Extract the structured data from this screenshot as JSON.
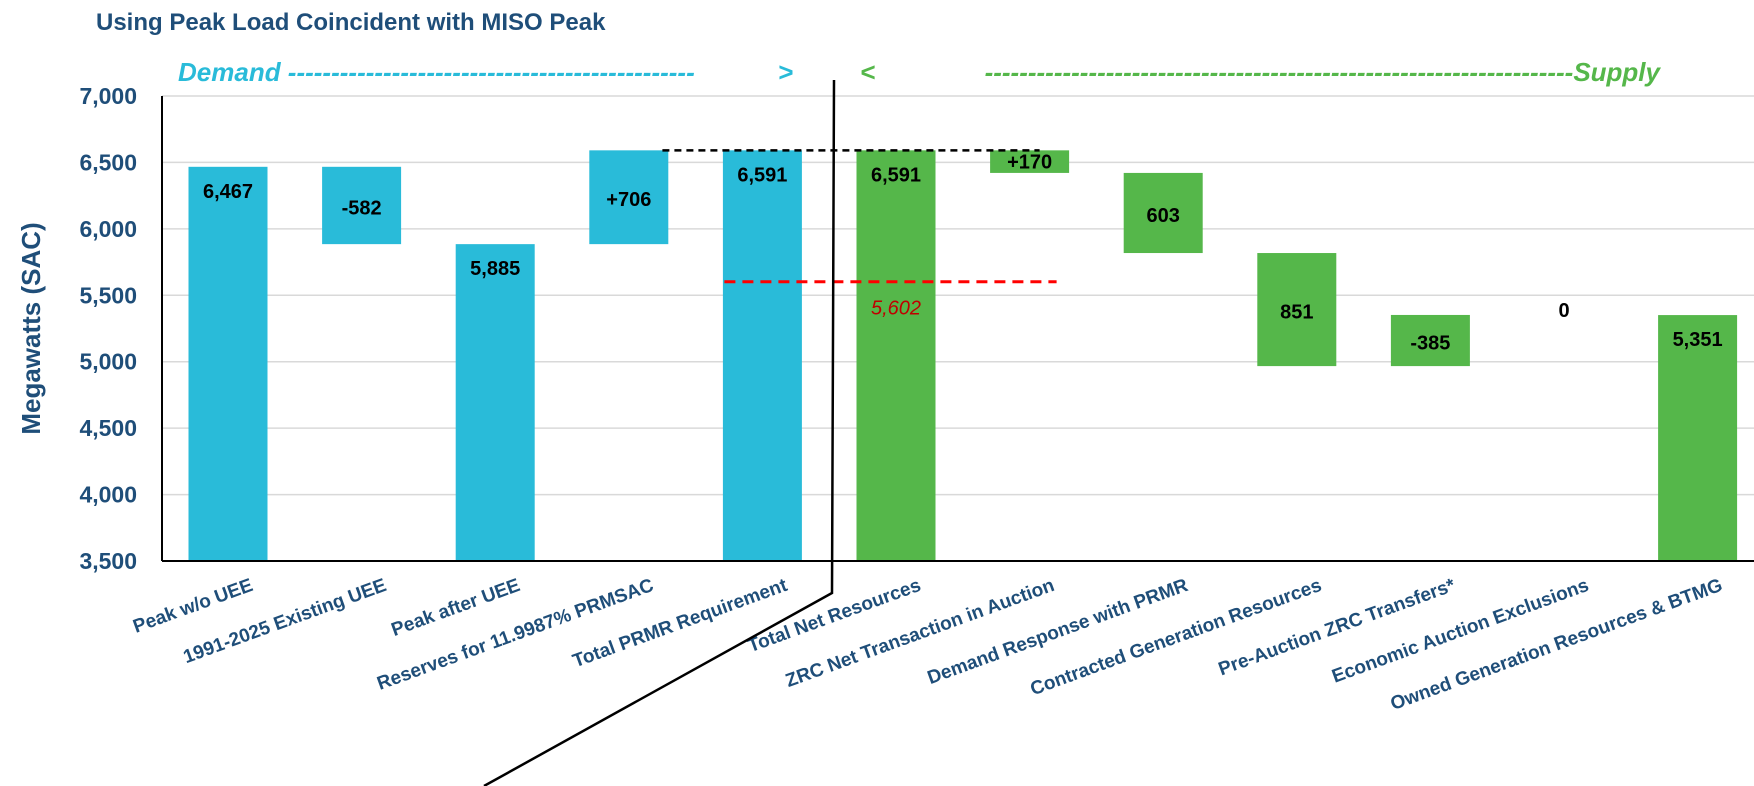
{
  "chart_data": {
    "type": "bar",
    "subtype": "waterfall",
    "title": "Using Peak Load Coincident with MISO Peak",
    "xlabel": "",
    "ylabel": "Megawatts (SAC)",
    "ylim": [
      3500,
      7000
    ],
    "yticks": [
      "3,500",
      "4,000",
      "4,500",
      "5,000",
      "5,500",
      "6,000",
      "6,500",
      "7,000"
    ],
    "grid": true,
    "colors": {
      "demand": "#29BBD9",
      "supply": "#55B74A",
      "axis_text": "#1f4e79",
      "reference_line": "#ff0000",
      "reference_text": "#c00000",
      "top_line": "#000000"
    },
    "sections": {
      "demand": "Demand",
      "supply": "Supply"
    },
    "bars": [
      {
        "category": "Peak w/o UEE",
        "low": 3500,
        "high": 6467,
        "label": "6,467",
        "group": "demand"
      },
      {
        "category": "1991-2025 Existing UEE",
        "low": 5885,
        "high": 6467,
        "label": "-582",
        "group": "demand"
      },
      {
        "category": "Peak after UEE",
        "low": 3500,
        "high": 5885,
        "label": "5,885",
        "group": "demand"
      },
      {
        "category": "Reserves for 11.9987% PRMSAC",
        "low": 5885,
        "high": 6591,
        "label": "+706",
        "group": "demand"
      },
      {
        "category": "Total PRMR Requirement",
        "low": 3500,
        "high": 6591,
        "label": "6,591",
        "group": "demand"
      },
      {
        "category": "Total Net Resources",
        "low": 3500,
        "high": 6591,
        "label": "6,591",
        "group": "supply"
      },
      {
        "category": "ZRC Net Transaction in Auction",
        "low": 6421,
        "high": 6591,
        "label": "+170",
        "group": "supply"
      },
      {
        "category": "Demand Response with PRMR",
        "low": 5818,
        "high": 6421,
        "label": "603",
        "group": "supply"
      },
      {
        "category": "Contracted Generation Resources",
        "low": 4967,
        "high": 5818,
        "label": "851",
        "group": "supply"
      },
      {
        "category": "Pre-Auction ZRC Transfers*",
        "low": 4967,
        "high": 5352,
        "label": "-385",
        "group": "supply"
      },
      {
        "category": "Economic Auction Exclusions",
        "low": 5352,
        "high": 5352,
        "label": "0",
        "group": "supply"
      },
      {
        "category": "Owned Generation Resources & BTMG",
        "low": 3500,
        "high": 5351,
        "label": "5,351",
        "group": "supply"
      }
    ],
    "reference_line": {
      "value": 5602,
      "label": "5,602"
    },
    "top_line_value": 6591
  }
}
